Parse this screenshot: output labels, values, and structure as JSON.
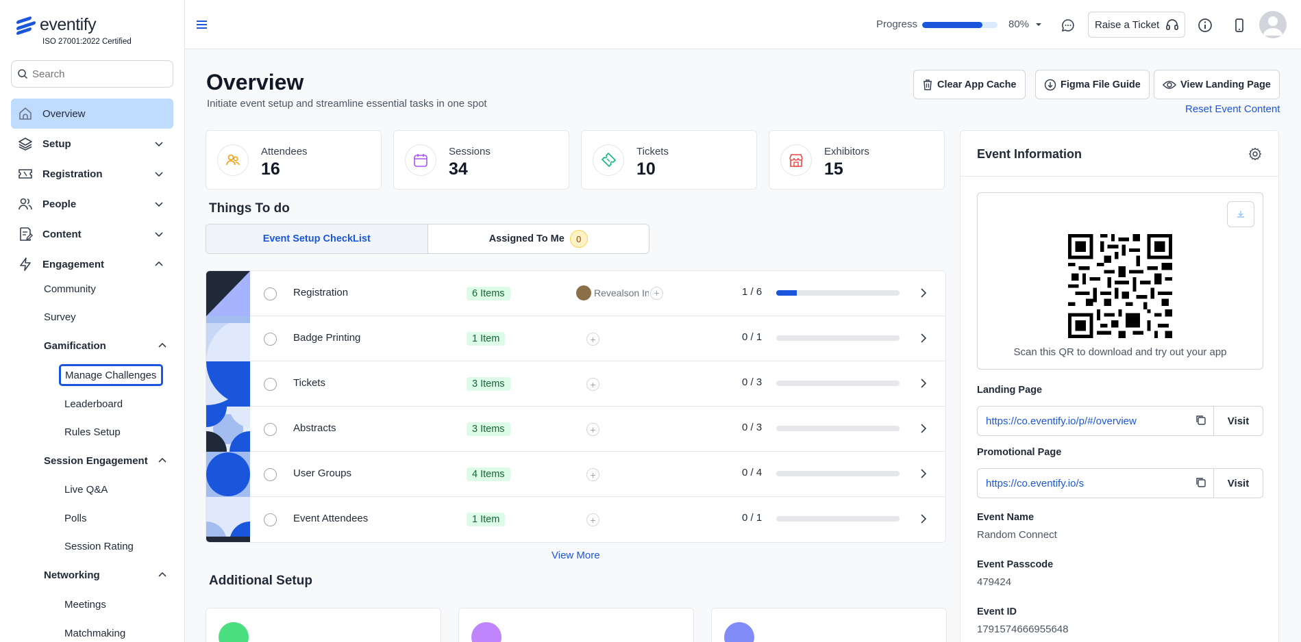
{
  "brand": {
    "name": "eventify",
    "cert": "ISO 27001:2022 Certified"
  },
  "search": {
    "placeholder": "Search"
  },
  "nav": {
    "overview": "Overview",
    "setup": "Setup",
    "registration": "Registration",
    "people": "People",
    "content": "Content",
    "engagement": "Engagement",
    "community": "Community",
    "survey": "Survey",
    "gamification": "Gamification",
    "manage_challenges": "Manage Challenges",
    "leaderboard": "Leaderboard",
    "rules_setup": "Rules Setup",
    "session_engagement": "Session Engagement",
    "live_qa": "Live Q&A",
    "polls": "Polls",
    "session_rating": "Session Rating",
    "networking": "Networking",
    "meetings": "Meetings",
    "matchmaking": "Matchmaking"
  },
  "topbar": {
    "progress_label": "Progress",
    "progress_value": 0.8,
    "progress_pct": "80%",
    "ticket_label": "Raise a Ticket"
  },
  "header": {
    "title": "Overview",
    "subtitle": "Initiate event setup and streamline essential tasks in one spot",
    "clear_cache": "Clear App Cache",
    "figma_guide": "Figma File Guide",
    "view_landing": "View Landing Page",
    "reset_content": "Reset Event Content"
  },
  "stats": [
    {
      "label": "Attendees",
      "value": "16",
      "color": "#f59e0b"
    },
    {
      "label": "Sessions",
      "value": "34",
      "color": "#a855f7"
    },
    {
      "label": "Tickets",
      "value": "10",
      "color": "#10b981"
    },
    {
      "label": "Exhibitors",
      "value": "15",
      "color": "#ef4444"
    }
  ],
  "things_to_do": {
    "title": "Things To do",
    "tab_checklist": "Event Setup CheckList",
    "tab_assigned": "Assigned To Me",
    "assigned_count": "0"
  },
  "checklist": [
    {
      "name": "Registration",
      "items": "6 Items",
      "assignee": "Revealson Ingt",
      "done": 1,
      "total": 6,
      "frac": "1 / 6"
    },
    {
      "name": "Badge Printing",
      "items": "1 Item",
      "done": 0,
      "total": 1,
      "frac": "0 / 1"
    },
    {
      "name": "Tickets",
      "items": "3 Items",
      "done": 0,
      "total": 3,
      "frac": "0 / 3"
    },
    {
      "name": "Abstracts",
      "items": "3 Items",
      "done": 0,
      "total": 3,
      "frac": "0 / 3"
    },
    {
      "name": "User Groups",
      "items": "4 Items",
      "done": 0,
      "total": 4,
      "frac": "0 / 4"
    },
    {
      "name": "Event Attendees",
      "items": "1 Item",
      "done": 0,
      "total": 1,
      "frac": "0 / 1"
    }
  ],
  "view_more": "View More",
  "additional_setup": {
    "title": "Additional Setup"
  },
  "event_info": {
    "title": "Event Information",
    "qr_caption": "Scan this QR to download and try out your app",
    "landing_label": "Landing Page",
    "landing_url": "https://co.eventify.io/p/#/overview",
    "promo_label": "Promotional Page",
    "promo_url": "https://co.eventify.io/s",
    "visit": "Visit",
    "name_label": "Event Name",
    "name_value": "Random Connect",
    "passcode_label": "Event Passcode",
    "passcode_value": "479424",
    "id_label": "Event ID",
    "id_value": "1791574666955648"
  },
  "colors": {
    "accent": "#1a56db",
    "active_nav": "#bfdbfe",
    "items_badge": "#dcfce7"
  }
}
